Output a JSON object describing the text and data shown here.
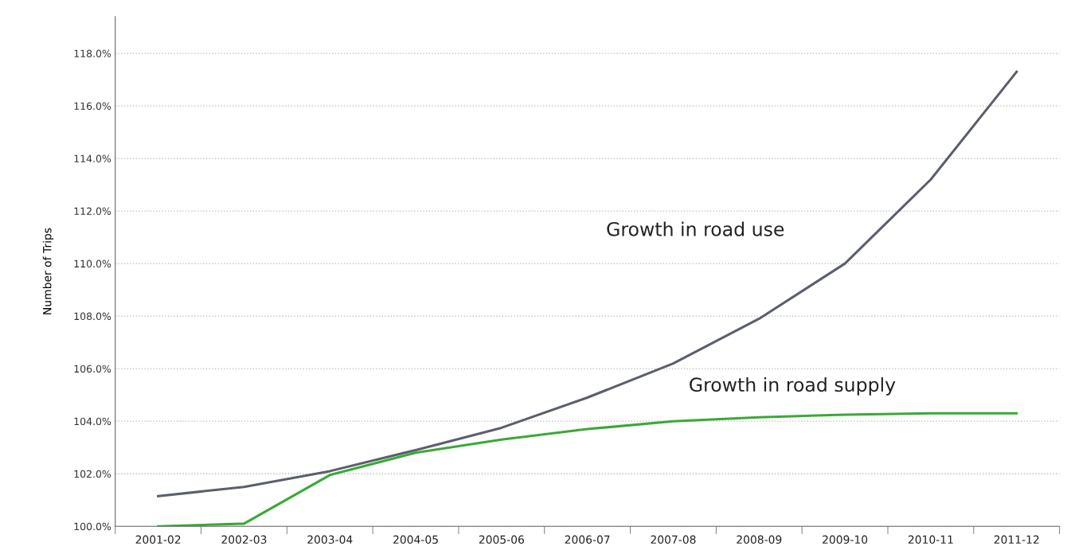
{
  "chart_data": {
    "type": "line",
    "ylabel": "Number of Trips",
    "categories": [
      "2001-02",
      "2002-03",
      "2003-04",
      "2004-05",
      "2005-06",
      "2006-07",
      "2007-08",
      "2008-09",
      "2009-10",
      "2010-11",
      "2011-12"
    ],
    "series": [
      {
        "name": "Growth in road use",
        "color": "#5a5f6b",
        "values": [
          101.15,
          101.5,
          102.1,
          102.9,
          103.75,
          104.9,
          106.2,
          107.9,
          110.0,
          113.2,
          117.3
        ]
      },
      {
        "name": "Growth in road supply",
        "color": "#3aa935",
        "values": [
          100.0,
          100.1,
          101.95,
          102.8,
          103.3,
          103.7,
          104.0,
          104.15,
          104.25,
          104.3,
          104.3
        ]
      }
    ],
    "ylim": [
      100,
      119.4
    ],
    "yticks": [
      {
        "value": 100,
        "label": "100.0%"
      },
      {
        "value": 102,
        "label": "102.0%"
      },
      {
        "value": 104,
        "label": "104.0%"
      },
      {
        "value": 106,
        "label": "106.0%"
      },
      {
        "value": 108,
        "label": "108.0%"
      },
      {
        "value": 110,
        "label": "110.0%"
      },
      {
        "value": 112,
        "label": "112.0%"
      },
      {
        "value": 114,
        "label": "114.0%"
      },
      {
        "value": 116,
        "label": "116.0%"
      },
      {
        "value": 118,
        "label": "118.0%"
      }
    ],
    "grid": "y",
    "legend": false,
    "marker": "none",
    "line_style": "solid"
  }
}
